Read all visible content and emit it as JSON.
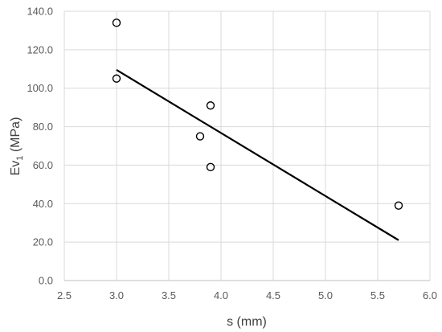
{
  "chart_data": {
    "type": "scatter",
    "xlabel": "s (mm)",
    "ylabel": {
      "main": "Ev",
      "sub": "1",
      "unit": " (MPa)"
    },
    "xlim": [
      2.5,
      6.0
    ],
    "ylim": [
      0,
      140
    ],
    "x_ticks": [
      "2.5",
      "3.0",
      "3.5",
      "4.0",
      "4.5",
      "5.0",
      "5.5",
      "6.0"
    ],
    "y_ticks": [
      "0.0",
      "20.0",
      "40.0",
      "60.0",
      "80.0",
      "100.0",
      "120.0",
      "140.0"
    ],
    "grid": true,
    "points": [
      {
        "x": 3.0,
        "y": 134
      },
      {
        "x": 3.0,
        "y": 105
      },
      {
        "x": 3.9,
        "y": 91
      },
      {
        "x": 3.8,
        "y": 75
      },
      {
        "x": 3.9,
        "y": 59
      },
      {
        "x": 5.7,
        "y": 39
      }
    ],
    "trendline": {
      "x": [
        3.0,
        5.7
      ],
      "y": [
        109.5,
        21
      ]
    },
    "colors": {
      "grid": "#d9d9d9",
      "marker": "#000000",
      "text": "#595959"
    }
  }
}
